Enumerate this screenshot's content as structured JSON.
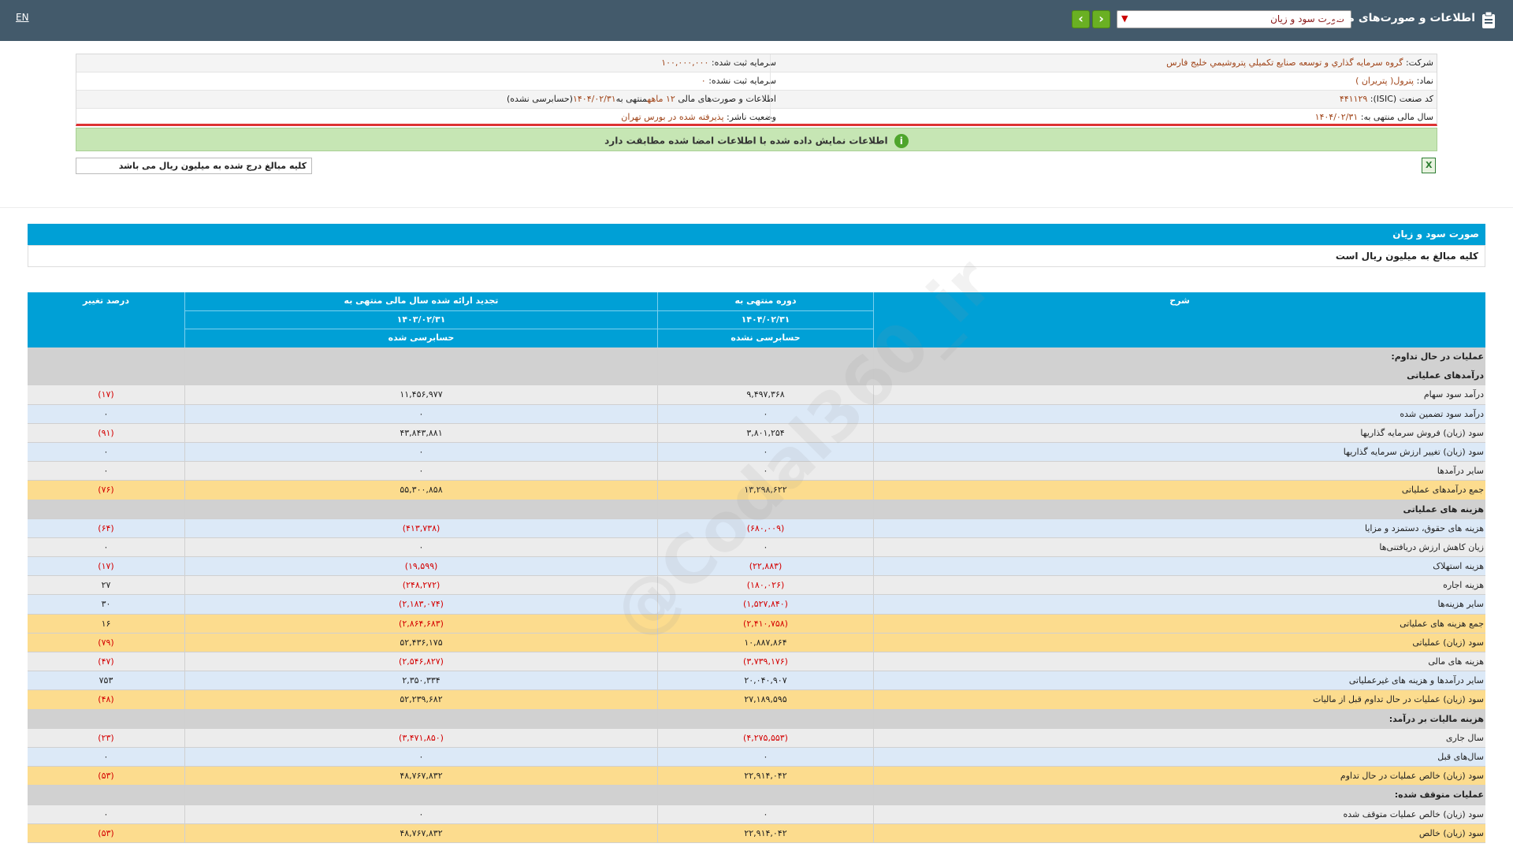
{
  "header": {
    "lang": "EN",
    "title": "اطلاعات و صورت‌های مالی",
    "report_select": "صورت سود و زیان"
  },
  "company": {
    "name_label": "شرکت:",
    "name_value": "گروه سرمايه گذاري و توسعه صنايع تكميلي پتروشيمي خليج فارس",
    "symbol_label": "نماد:",
    "symbol_value": "پترول( پتريران )",
    "isic_label": "کد صنعت (ISIC):",
    "isic_value": "۴۴۱۱۲۹",
    "fiscal_label": "سال مالی منتهی به:",
    "fiscal_value": "۱۴۰۴/۰۲/۳۱",
    "reg_capital_label": "سرمایه ثبت شده:",
    "reg_capital_value": "۱۰۰,۰۰۰,۰۰۰",
    "unreg_capital_label": "سرمایه ثبت نشده:",
    "unreg_capital_value": "۰",
    "statements_label": "اطلاعات و صورت‌های مالی",
    "statements_value_a": "۱۲ ماهه",
    "statements_value_b": "منتهی به",
    "statements_value_c": "۱۴۰۴/۰۲/۳۱",
    "statements_value_d": "(حسابرسی نشده)",
    "status_label": "وضعیت ناشر:",
    "status_value": "پذیرفته شده در بورس تهران"
  },
  "banner": "اطلاعات نمایش داده شده با اطلاعات امضا شده مطابقت دارد",
  "unit_note": "کلیه مبالغ درج شده به میلیون ریال می باشد",
  "section": {
    "title": "صورت سود و زیان",
    "subtitle": "کلیه مبالغ به میلیون ریال است"
  },
  "table_header": {
    "desc": "شرح",
    "current_period": "دوره منتهی به",
    "current_date": "۱۴۰۴/۰۲/۳۱",
    "current_audit": "حسابرسی نشده",
    "restated": "تجدید ارائه شده سال مالی منتهی به",
    "restated_date": "۱۴۰۳/۰۲/۳۱",
    "restated_audit": "حسابرسی شده",
    "pct": "درصد تغییر"
  },
  "rows": [
    {
      "type": "head",
      "desc": "عملیات در حال تداوم:",
      "cur": "",
      "prev": "",
      "pct": ""
    },
    {
      "type": "head",
      "desc": "درآمدهای عملیاتی",
      "cur": "",
      "prev": "",
      "pct": ""
    },
    {
      "type": "odd",
      "desc": "درآمد سود سهام",
      "cur": "۹,۴۹۷,۳۶۸",
      "prev": "۱۱,۴۵۶,۹۷۷",
      "pct": "(۱۷)"
    },
    {
      "type": "even",
      "desc": "درآمد سود تضمین شده",
      "cur": "۰",
      "prev": "۰",
      "pct": "۰"
    },
    {
      "type": "odd",
      "desc": "سود (زیان) فروش سرمایه گذاریها",
      "cur": "۳,۸۰۱,۲۵۴",
      "prev": "۴۳,۸۴۳,۸۸۱",
      "pct": "(۹۱)"
    },
    {
      "type": "even",
      "desc": "سود (زیان) تغییر ارزش سرمایه گذاریها",
      "cur": "۰",
      "prev": "۰",
      "pct": "۰"
    },
    {
      "type": "odd",
      "desc": "سایر درآمدها",
      "cur": "۰",
      "prev": "۰",
      "pct": "۰"
    },
    {
      "type": "total",
      "desc": "جمع درآمدهای عملیاتی",
      "cur": "۱۳,۲۹۸,۶۲۲",
      "prev": "۵۵,۳۰۰,۸۵۸",
      "pct": "(۷۶)"
    },
    {
      "type": "head",
      "desc": "هزینه های عملیاتی",
      "cur": "",
      "prev": "",
      "pct": ""
    },
    {
      "type": "even",
      "desc": "هزینه های حقوق، دستمزد و مزایا",
      "cur": "(۶۸۰,۰۰۹)",
      "prev": "(۴۱۳,۷۳۸)",
      "pct": "(۶۴)"
    },
    {
      "type": "odd",
      "desc": "زیان کاهش ارزش دریافتنی‌ها",
      "cur": "۰",
      "prev": "۰",
      "pct": "۰"
    },
    {
      "type": "even",
      "desc": "هزینه استهلاک",
      "cur": "(۲۲,۸۸۳)",
      "prev": "(۱۹,۵۹۹)",
      "pct": "(۱۷)"
    },
    {
      "type": "odd",
      "desc": "هزینه اجاره",
      "cur": "(۱۸۰,۰۲۶)",
      "prev": "(۲۴۸,۲۷۲)",
      "pct": "۲۷"
    },
    {
      "type": "even",
      "desc": "سایر هزینه‌ها",
      "cur": "(۱,۵۲۷,۸۴۰)",
      "prev": "(۲,۱۸۳,۰۷۴)",
      "pct": "۳۰"
    },
    {
      "type": "total",
      "desc": "جمع هزینه های عملیاتی",
      "cur": "(۲,۴۱۰,۷۵۸)",
      "prev": "(۲,۸۶۴,۶۸۳)",
      "pct": "۱۶"
    },
    {
      "type": "total",
      "desc": "سود (زیان) عملیاتی",
      "cur": "۱۰,۸۸۷,۸۶۴",
      "prev": "۵۲,۴۳۶,۱۷۵",
      "pct": "(۷۹)"
    },
    {
      "type": "odd",
      "desc": "هزینه های مالی",
      "cur": "(۳,۷۳۹,۱۷۶)",
      "prev": "(۲,۵۴۶,۸۲۷)",
      "pct": "(۴۷)"
    },
    {
      "type": "even",
      "desc": "سایر درآمدها و هزینه های غیرعملیاتی",
      "cur": "۲۰,۰۴۰,۹۰۷",
      "prev": "۲,۳۵۰,۳۳۴",
      "pct": "۷۵۳"
    },
    {
      "type": "total",
      "desc": "سود (زیان) عملیات در حال تداوم قبل از مالیات",
      "cur": "۲۷,۱۸۹,۵۹۵",
      "prev": "۵۲,۲۳۹,۶۸۲",
      "pct": "(۴۸)"
    },
    {
      "type": "head",
      "desc": "هزینه مالیات بر درآمد:",
      "cur": "",
      "prev": "",
      "pct": ""
    },
    {
      "type": "odd",
      "desc": "سال جاری",
      "cur": "(۴,۲۷۵,۵۵۳)",
      "prev": "(۳,۴۷۱,۸۵۰)",
      "pct": "(۲۳)"
    },
    {
      "type": "even",
      "desc": "سال‌های قبل",
      "cur": "۰",
      "prev": "۰",
      "pct": "۰"
    },
    {
      "type": "total",
      "desc": "سود (زیان) خالص عملیات در حال تداوم",
      "cur": "۲۲,۹۱۴,۰۴۲",
      "prev": "۴۸,۷۶۷,۸۳۲",
      "pct": "(۵۳)"
    },
    {
      "type": "head",
      "desc": "عملیات متوقف شده:",
      "cur": "",
      "prev": "",
      "pct": ""
    },
    {
      "type": "odd",
      "desc": "سود (زیان) خالص عملیات متوقف شده",
      "cur": "۰",
      "prev": "۰",
      "pct": "۰"
    },
    {
      "type": "total",
      "desc": "سود (زیان) خالص",
      "cur": "۲۲,۹۱۴,۰۴۲",
      "prev": "۴۸,۷۶۷,۸۳۲",
      "pct": "(۵۳)"
    }
  ],
  "watermark": "@Codal360_ir",
  "colors": {
    "topbar": "#435a6b",
    "table_header": "#00a0d6",
    "total_row": "#fcdc8e",
    "negative": "#d40000"
  }
}
